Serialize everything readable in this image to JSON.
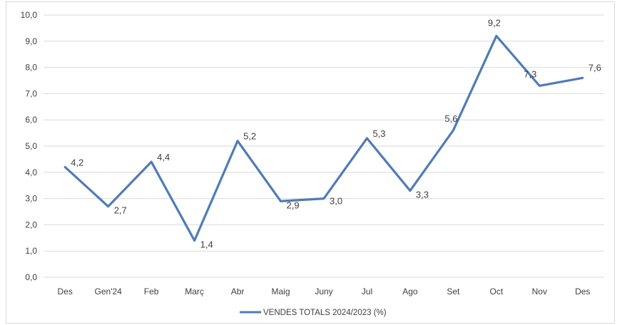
{
  "chart_data": {
    "type": "line",
    "title": "",
    "xlabel": "",
    "ylabel": "",
    "categories": [
      "Des",
      "Gen'24",
      "Feb",
      "Març",
      "Abr",
      "Maig",
      "Juny",
      "Jul",
      "Ago",
      "Set",
      "Oct",
      "Nov",
      "Des"
    ],
    "series": [
      {
        "name": "VENDES TOTALS 2024/2023 (%)",
        "values": [
          4.2,
          2.7,
          4.4,
          1.4,
          5.2,
          2.9,
          3.0,
          5.3,
          3.3,
          5.6,
          9.2,
          7.3,
          7.6
        ],
        "labels": [
          "4,2",
          "2,7",
          "4,4",
          "1,4",
          "5,2",
          "2,9",
          "3,0",
          "5,3",
          "3,3",
          "5,6",
          "9,2",
          "7,3",
          "7,6"
        ],
        "color": "#4f7bb9"
      }
    ],
    "ylim": [
      0,
      10
    ],
    "yticks": [
      "0,0",
      "1,0",
      "2,0",
      "3,0",
      "4,0",
      "5,0",
      "6,0",
      "7,0",
      "8,0",
      "9,0",
      "10,0"
    ],
    "grid": true,
    "legend_position": "bottom"
  }
}
